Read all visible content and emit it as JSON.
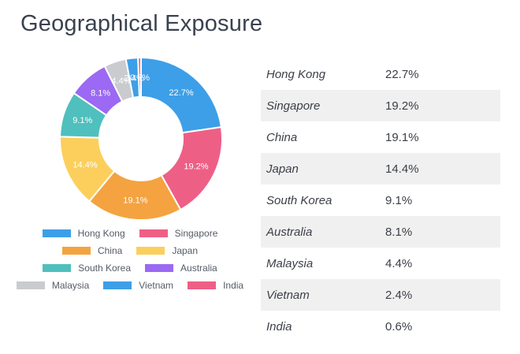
{
  "title": "Geographical Exposure",
  "chart_data": {
    "type": "pie",
    "variant": "donut",
    "categories": [
      "Hong Kong",
      "Singapore",
      "China",
      "Japan",
      "South Korea",
      "Australia",
      "Malaysia",
      "Vietnam",
      "India"
    ],
    "values": [
      22.7,
      19.2,
      19.1,
      14.4,
      9.1,
      8.1,
      4.4,
      2.4,
      0.6
    ],
    "labels": [
      "22.7%",
      "19.2%",
      "19.1%",
      "14.4%",
      "9.1%",
      "8.1%",
      "4.4%",
      "2.4%",
      "0.6%"
    ],
    "colors": [
      "#3d9fe8",
      "#ee5f86",
      "#f4a340",
      "#fccf5d",
      "#4fc0bd",
      "#9b69f3",
      "#c9cbcf",
      "#3d9fe8",
      "#ee5f86"
    ],
    "legend_position": "bottom"
  },
  "table": {
    "rows": [
      {
        "name": "Hong Kong",
        "pct": "22.7%"
      },
      {
        "name": "Singapore",
        "pct": "19.2%"
      },
      {
        "name": "China",
        "pct": "19.1%"
      },
      {
        "name": "Japan",
        "pct": "14.4%"
      },
      {
        "name": "South Korea",
        "pct": "9.1%"
      },
      {
        "name": "Australia",
        "pct": "8.1%"
      },
      {
        "name": "Malaysia",
        "pct": "4.4%"
      },
      {
        "name": "Vietnam",
        "pct": "2.4%"
      },
      {
        "name": "India",
        "pct": "0.6%"
      }
    ]
  }
}
